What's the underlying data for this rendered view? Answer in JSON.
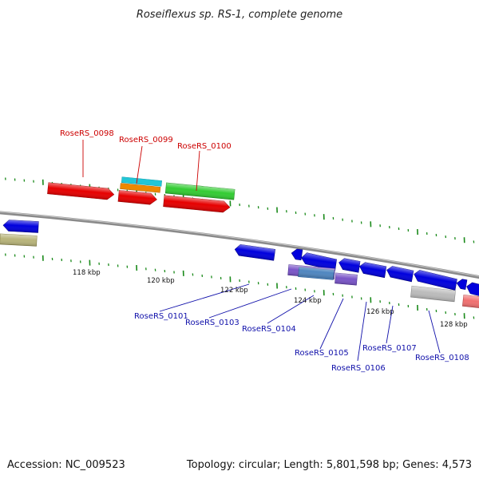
{
  "title": "Roseiflexus sp. RS-1, complete genome",
  "footer": {
    "accession": "Accession: NC_009523",
    "summary": "Topology: circular; Length: 5,801,598 bp; Genes: 4,573"
  },
  "ticks": [
    "118 kbp",
    "120 kbp",
    "122 kbp",
    "124 kbp",
    "126 kbp",
    "128 kbp"
  ],
  "gene_labels": {
    "forward": [
      "RoseRS_0098",
      "RoseRS_0099",
      "RoseRS_0100"
    ],
    "reverse": [
      "RoseRS_0101",
      "RoseRS_0103",
      "RoseRS_0104",
      "RoseRS_0105",
      "RoseRS_0106",
      "RoseRS_0107",
      "RoseRS_0108"
    ]
  },
  "colors": {
    "backbone": "#8a8a8a",
    "tick": "#1a8a1a",
    "forward_label": "#cc0000",
    "reverse_label": "#1010aa",
    "gene_red": "#e60000",
    "gene_green": "#33cc33",
    "gene_blue": "#0000dd",
    "gene_cyan": "#22c6d6",
    "gene_orange": "#ee8800",
    "gene_olive": "#b8b47a",
    "gene_steel": "#4f86c0",
    "gene_purple": "#7a55c8",
    "gene_gray": "#bbbbbb",
    "gene_pink": "#f07070"
  }
}
